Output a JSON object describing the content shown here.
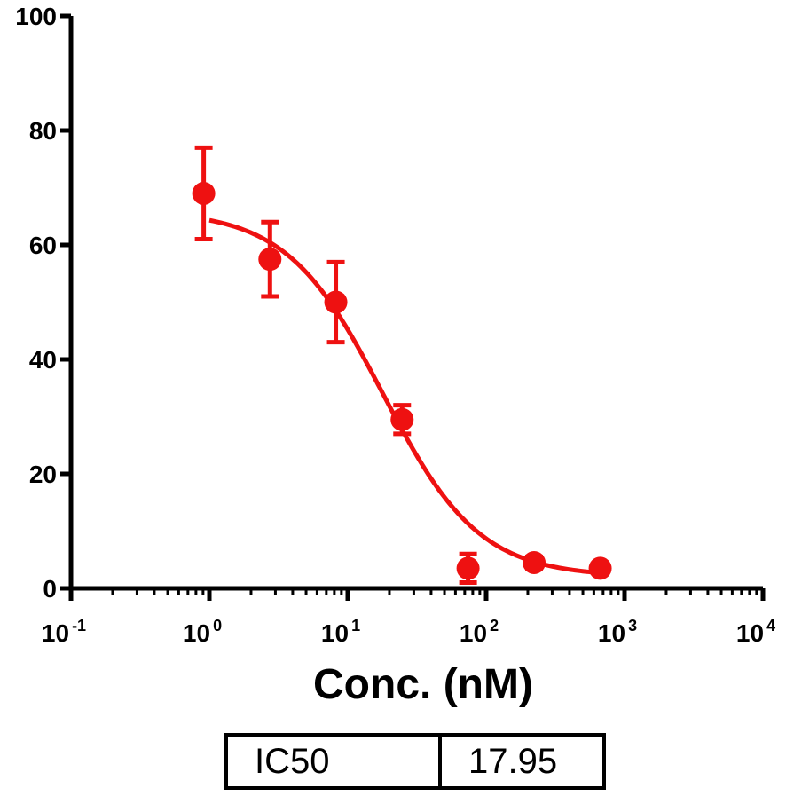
{
  "chart_data": {
    "type": "scatter",
    "title": "",
    "xlabel": "Conc. (nM)",
    "ylabel": "",
    "x_scale": "log",
    "xlim": [
      0.1,
      10000
    ],
    "ylim": [
      0,
      100
    ],
    "x_ticks": [
      {
        "value": 0.1,
        "base": "10",
        "exp": "-1"
      },
      {
        "value": 1,
        "base": "10",
        "exp": "0"
      },
      {
        "value": 10,
        "base": "10",
        "exp": "1"
      },
      {
        "value": 100,
        "base": "10",
        "exp": "2"
      },
      {
        "value": 1000,
        "base": "10",
        "exp": "3"
      },
      {
        "value": 10000,
        "base": "10",
        "exp": "4"
      }
    ],
    "y_ticks": [
      0,
      20,
      40,
      60,
      80,
      100
    ],
    "grid": false,
    "color": "#ee1111",
    "points": [
      {
        "x": 0.91,
        "y": 69,
        "err": 8
      },
      {
        "x": 2.74,
        "y": 57.5,
        "err": 6.5
      },
      {
        "x": 8.2,
        "y": 50,
        "err": 7
      },
      {
        "x": 24.7,
        "y": 29.5,
        "err": 2.5
      },
      {
        "x": 74,
        "y": 3.5,
        "err": 2.5
      },
      {
        "x": 222,
        "y": 4.5,
        "err": 1
      },
      {
        "x": 667,
        "y": 3.5,
        "err": 0.5
      }
    ],
    "fit": {
      "model": "4PL",
      "top": 66,
      "bottom": 2,
      "ic50": 17.95,
      "hill": 1.25,
      "x_range": [
        1,
        667
      ]
    }
  },
  "table": {
    "label": "IC50",
    "value": "17.95"
  }
}
